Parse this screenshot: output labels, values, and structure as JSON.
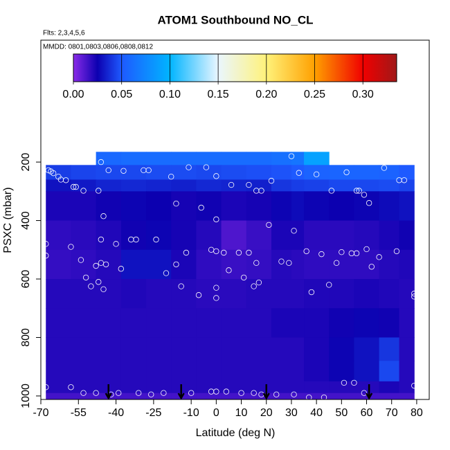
{
  "chart_data": {
    "type": "curtain",
    "title": "ATOM1 Southbound NO_CL",
    "subtitle": "Flts: 2,3,4,5,6",
    "annotation": "MMDD: 0801,0803,0806,0808,0812",
    "x_label": "Latitude (deg N)",
    "y_label": "PSXC (mbar)",
    "xlim": [
      -70,
      85
    ],
    "ylim": [
      1012,
      -217
    ],
    "xticks": [
      -70,
      -55,
      -40,
      -25,
      -10,
      0,
      10,
      20,
      30,
      40,
      50,
      60,
      70,
      80
    ],
    "yticks": [
      200,
      400,
      600,
      800,
      1000
    ],
    "heatmap": {
      "lat_edges": [
        -68,
        -58,
        -48,
        -38,
        -28,
        -18,
        -8,
        2,
        12,
        22,
        30,
        35,
        45,
        55,
        65,
        73,
        79
      ],
      "pressure_edges": [
        165,
        210,
        260,
        300,
        400,
        500,
        600,
        700,
        800,
        880,
        950,
        990,
        1010
      ],
      "values": [
        [
          null,
          null,
          0.058,
          0.06,
          0.06,
          0.06,
          0.06,
          0.06,
          0.06,
          0.062,
          0.065,
          0.09,
          null,
          null,
          null,
          null
        ],
        [
          0.042,
          0.044,
          0.045,
          0.045,
          0.046,
          0.046,
          0.045,
          0.046,
          0.047,
          0.048,
          0.05,
          0.055,
          0.056,
          0.056,
          0.055,
          0.05
        ],
        [
          0.03,
          0.032,
          0.035,
          0.036,
          0.035,
          0.034,
          0.036,
          0.035,
          0.034,
          0.04,
          0.042,
          0.043,
          0.045,
          0.045,
          0.046,
          0.044
        ],
        [
          0.022,
          0.022,
          0.024,
          0.026,
          0.025,
          0.023,
          0.024,
          0.022,
          0.023,
          0.026,
          0.028,
          0.026,
          0.025,
          0.026,
          0.028,
          0.03
        ],
        [
          0.018,
          0.019,
          0.021,
          0.024,
          0.026,
          0.023,
          0.02,
          0.012,
          0.016,
          0.022,
          0.022,
          0.019,
          0.019,
          0.02,
          0.022,
          0.024
        ],
        [
          0.017,
          0.018,
          0.02,
          0.03,
          0.03,
          0.022,
          0.018,
          0.016,
          0.017,
          0.02,
          0.019,
          0.018,
          0.018,
          0.018,
          0.02,
          0.021
        ],
        [
          0.02,
          0.02,
          0.02,
          0.021,
          0.02,
          0.02,
          0.019,
          0.019,
          0.02,
          0.02,
          0.02,
          0.021,
          0.021,
          0.022,
          0.021,
          0.02
        ],
        [
          0.02,
          0.02,
          0.02,
          0.02,
          0.02,
          0.02,
          0.02,
          0.02,
          0.02,
          0.022,
          0.022,
          0.022,
          0.024,
          0.026,
          0.024,
          0.02
        ],
        [
          0.02,
          0.02,
          0.02,
          0.02,
          0.02,
          0.02,
          0.02,
          0.02,
          0.02,
          0.02,
          0.02,
          0.022,
          0.026,
          0.03,
          0.04,
          0.02
        ],
        [
          0.02,
          0.02,
          0.02,
          0.02,
          0.02,
          0.02,
          0.02,
          0.02,
          0.02,
          0.02,
          0.02,
          0.022,
          0.026,
          0.03,
          0.045,
          0.02
        ],
        [
          0.02,
          0.02,
          0.02,
          0.02,
          0.02,
          0.02,
          0.02,
          0.02,
          0.02,
          0.02,
          0.02,
          0.02,
          0.02,
          0.02,
          0.022,
          0.02
        ],
        [
          0.014,
          0.014,
          0.014,
          0.014,
          0.014,
          0.014,
          0.014,
          0.014,
          0.014,
          0.014,
          0.014,
          0.014,
          0.014,
          0.014,
          0.014,
          0.014
        ]
      ]
    },
    "clim": [
      0,
      0.335
    ],
    "colorscale": [
      {
        "value": 0,
        "color": "#8a2be8"
      },
      {
        "value": 0.025,
        "color": "#0c00b0"
      },
      {
        "value": 0.05,
        "color": "#1e5aff"
      },
      {
        "value": 0.1,
        "color": "#00b4ff"
      },
      {
        "value": 0.15,
        "color": "#eaf6ff"
      },
      {
        "value": 0.2,
        "color": "#fff27a"
      },
      {
        "value": 0.25,
        "color": "#ffa000"
      },
      {
        "value": 0.3,
        "color": "#f00000"
      },
      {
        "value": 0.335,
        "color": "#a01818"
      }
    ],
    "colorbar_ticks": [
      {
        "value": 0,
        "label": "0.00"
      },
      {
        "value": 0.05,
        "label": "0.05"
      },
      {
        "value": 0.1,
        "label": "0.10"
      },
      {
        "value": 0.15,
        "label": "0.15"
      },
      {
        "value": 0.2,
        "label": "0.20"
      },
      {
        "value": 0.25,
        "label": "0.25"
      },
      {
        "value": 0.3,
        "label": "0.30"
      }
    ],
    "points": {
      "color": "#ffffff",
      "x": [
        -67,
        -66,
        -65,
        -63,
        -62,
        -60,
        -57,
        -56,
        -53,
        -47,
        -46,
        -43,
        -37,
        -29,
        -27,
        -18,
        -16,
        -11,
        -6,
        -4,
        0,
        0,
        6,
        13,
        16,
        18,
        22,
        30,
        33,
        40,
        46,
        52,
        56,
        57,
        59,
        61,
        67,
        73,
        75,
        -68,
        -68,
        -58,
        -54,
        -52,
        -50,
        -48,
        -47,
        -46,
        -46,
        -45,
        -45,
        -44,
        -40,
        -38,
        -34,
        -32,
        -24,
        -20,
        -16,
        -14,
        -12,
        -7,
        -2,
        0,
        0,
        0,
        3,
        5,
        9,
        11,
        13,
        15,
        16,
        17,
        21,
        26,
        29,
        31,
        36,
        38,
        42,
        45,
        48,
        50,
        54,
        56,
        60,
        62,
        65,
        72,
        79,
        79,
        -68,
        -58,
        -53,
        -48,
        -42,
        -39,
        -31,
        -26,
        -21,
        -10,
        -2,
        0,
        4,
        10,
        15,
        18,
        24,
        31,
        37,
        43,
        51,
        55,
        59,
        79
      ],
      "y": [
        228,
        232,
        238,
        250,
        260,
        262,
        285,
        285,
        298,
        298,
        200,
        228,
        230,
        228,
        228,
        250,
        342,
        218,
        356,
        218,
        248,
        396,
        278,
        278,
        298,
        298,
        264,
        180,
        237,
        242,
        298,
        235,
        298,
        298,
        312,
        340,
        220,
        262,
        262,
        480,
        520,
        490,
        535,
        595,
        625,
        555,
        610,
        465,
        545,
        385,
        635,
        550,
        480,
        565,
        465,
        465,
        465,
        580,
        550,
        625,
        510,
        655,
        500,
        505,
        630,
        665,
        510,
        570,
        510,
        595,
        510,
        625,
        545,
        612,
        415,
        540,
        545,
        435,
        505,
        645,
        515,
        620,
        545,
        508,
        512,
        512,
        498,
        558,
        525,
        505,
        650,
        660,
        970,
        970,
        990,
        990,
        995,
        990,
        990,
        995,
        990,
        990,
        985,
        985,
        985,
        990,
        990,
        995,
        995,
        995,
        1005,
        1005,
        955,
        955,
        990,
        965
      ]
    },
    "arrows": {
      "color": "#000000",
      "x": [
        -43,
        -14,
        20,
        61
      ]
    }
  }
}
